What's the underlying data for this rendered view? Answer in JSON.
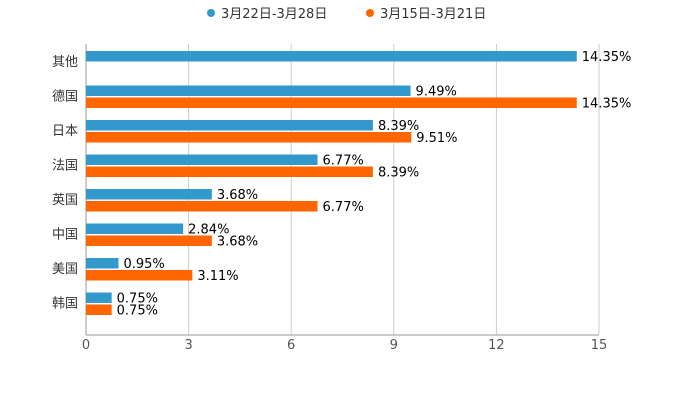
{
  "chart_data": {
    "type": "bar",
    "orientation": "horizontal",
    "categories": [
      "其他",
      "德国",
      "日本",
      "法国",
      "英国",
      "中国",
      "美国",
      "韩国"
    ],
    "series": [
      {
        "name": "3月22日-3月28日",
        "color": "#3399cc",
        "values": [
          14.35,
          9.49,
          8.39,
          6.77,
          3.68,
          2.84,
          0.95,
          0.75
        ],
        "labels": [
          "14.35%",
          "9.49%",
          "8.39%",
          "6.77%",
          "3.68%",
          "2.84%",
          "0.95%",
          "0.75%"
        ]
      },
      {
        "name": "3月15日-3月21日",
        "color": "#ff6600",
        "values": [
          null,
          14.35,
          9.51,
          8.39,
          6.77,
          3.68,
          3.11,
          0.75
        ],
        "labels": [
          "",
          "14.35%",
          "9.51%",
          "8.39%",
          "6.77%",
          "3.68%",
          "3.11%",
          "0.75%"
        ]
      }
    ],
    "xlim": [
      0,
      15
    ],
    "xticks": [
      0,
      3,
      6,
      9,
      12,
      15
    ],
    "grid": "vertical",
    "legend": "top-center",
    "title": "",
    "xlabel": "",
    "ylabel": ""
  }
}
